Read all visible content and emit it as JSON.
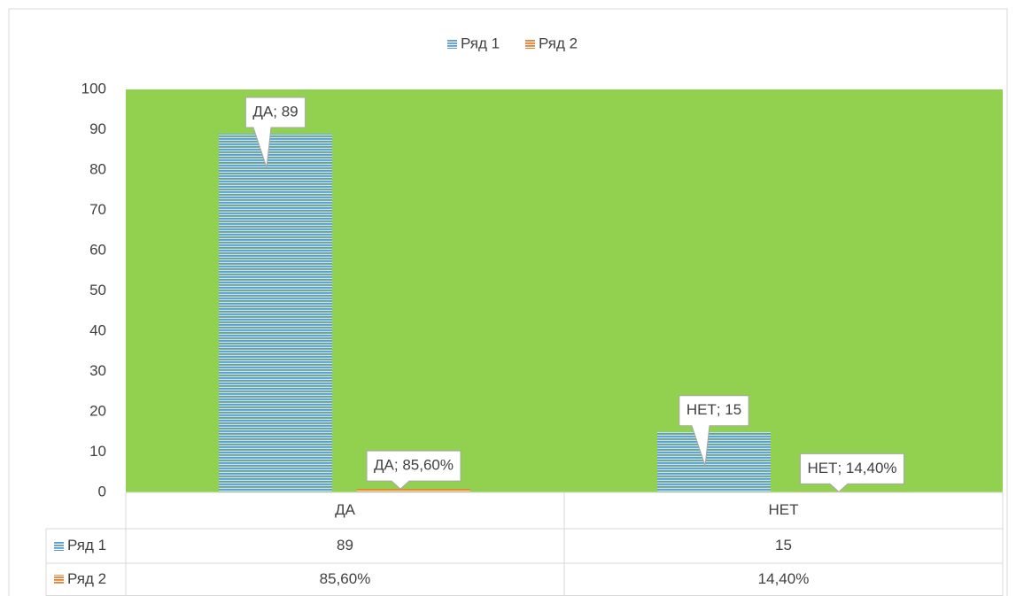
{
  "chart_data": {
    "type": "bar",
    "categories": [
      "ДА",
      "НЕТ"
    ],
    "series": [
      {
        "name": "Ряд 1",
        "color": "#5b9bd5",
        "values": [
          89,
          15
        ],
        "value_labels": [
          "ДА; 89",
          "НЕТ; 15"
        ]
      },
      {
        "name": "Ряд 2",
        "color": "#ed7d31",
        "values": [
          0.856,
          0.144
        ],
        "value_labels": [
          "ДА; 85,60%",
          "НЕТ; 14,40%"
        ],
        "table_labels": [
          "85,60%",
          "14,40%"
        ]
      }
    ],
    "ylim": [
      0,
      100
    ],
    "yticks": [
      0,
      10,
      20,
      30,
      40,
      50,
      60,
      70,
      80,
      90,
      100
    ],
    "plot_background": "#92d050",
    "legend": "top",
    "data_table": true
  }
}
